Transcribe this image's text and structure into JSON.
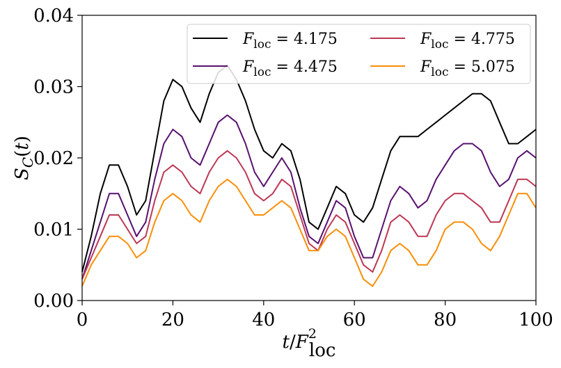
{
  "chart_data": {
    "type": "line",
    "xlabel": "t/F2loc",
    "ylabel": "SC(t)",
    "x": [
      0,
      2,
      4,
      6,
      8,
      10,
      12,
      14,
      16,
      18,
      20,
      22,
      24,
      26,
      28,
      30,
      32,
      34,
      36,
      38,
      40,
      42,
      44,
      46,
      48,
      50,
      52,
      54,
      56,
      58,
      60,
      62,
      64,
      66,
      68,
      70,
      72,
      74,
      76,
      78,
      80,
      82,
      84,
      86,
      88,
      90,
      92,
      94,
      96,
      98,
      100
    ],
    "series": [
      {
        "name": "Floc = 4.175",
        "color": "#000000",
        "values": [
          0.004,
          0.009,
          0.015,
          0.019,
          0.019,
          0.016,
          0.012,
          0.014,
          0.021,
          0.028,
          0.031,
          0.03,
          0.027,
          0.025,
          0.029,
          0.032,
          0.033,
          0.031,
          0.028,
          0.024,
          0.021,
          0.02,
          0.022,
          0.021,
          0.017,
          0.011,
          0.01,
          0.013,
          0.016,
          0.015,
          0.012,
          0.011,
          0.013,
          0.017,
          0.021,
          0.023,
          0.023,
          0.023,
          0.024,
          0.025,
          0.026,
          0.027,
          0.028,
          0.029,
          0.029,
          0.028,
          0.025,
          0.022,
          0.022,
          0.023,
          0.024
        ]
      },
      {
        "name": "Floc = 4.475",
        "color": "#57106e",
        "values": [
          0.003,
          0.007,
          0.011,
          0.015,
          0.015,
          0.012,
          0.009,
          0.011,
          0.017,
          0.022,
          0.024,
          0.023,
          0.02,
          0.019,
          0.022,
          0.025,
          0.026,
          0.025,
          0.022,
          0.018,
          0.016,
          0.018,
          0.02,
          0.018,
          0.013,
          0.009,
          0.008,
          0.011,
          0.014,
          0.013,
          0.009,
          0.006,
          0.006,
          0.01,
          0.014,
          0.016,
          0.015,
          0.013,
          0.014,
          0.017,
          0.019,
          0.021,
          0.022,
          0.022,
          0.021,
          0.018,
          0.016,
          0.017,
          0.02,
          0.021,
          0.02
        ]
      },
      {
        "name": "Floc = 4.775",
        "color": "#bc3754",
        "values": [
          0.003,
          0.006,
          0.009,
          0.012,
          0.012,
          0.01,
          0.008,
          0.009,
          0.014,
          0.018,
          0.019,
          0.018,
          0.016,
          0.015,
          0.018,
          0.02,
          0.021,
          0.02,
          0.018,
          0.015,
          0.014,
          0.015,
          0.017,
          0.016,
          0.012,
          0.008,
          0.007,
          0.01,
          0.012,
          0.011,
          0.008,
          0.005,
          0.004,
          0.007,
          0.011,
          0.012,
          0.011,
          0.009,
          0.009,
          0.012,
          0.014,
          0.015,
          0.015,
          0.014,
          0.013,
          0.011,
          0.011,
          0.014,
          0.017,
          0.017,
          0.016
        ]
      },
      {
        "name": "Floc = 5.075",
        "color": "#f98e09",
        "values": [
          0.002,
          0.005,
          0.007,
          0.009,
          0.009,
          0.008,
          0.006,
          0.007,
          0.011,
          0.014,
          0.015,
          0.014,
          0.012,
          0.011,
          0.014,
          0.016,
          0.017,
          0.016,
          0.014,
          0.012,
          0.012,
          0.013,
          0.014,
          0.013,
          0.01,
          0.007,
          0.007,
          0.009,
          0.01,
          0.009,
          0.006,
          0.003,
          0.002,
          0.004,
          0.007,
          0.008,
          0.007,
          0.005,
          0.005,
          0.007,
          0.01,
          0.011,
          0.011,
          0.01,
          0.008,
          0.007,
          0.009,
          0.012,
          0.015,
          0.015,
          0.013
        ]
      }
    ],
    "xlim": [
      0,
      100
    ],
    "xticks": [
      0,
      20,
      40,
      60,
      80,
      100
    ],
    "ylim": [
      0,
      0.04
    ],
    "yticks": [
      {
        "value": 0,
        "label": "0.00"
      },
      0.01,
      0.02,
      0.03,
      0.04
    ],
    "legend": "upper right",
    "legend_columns": 2
  }
}
